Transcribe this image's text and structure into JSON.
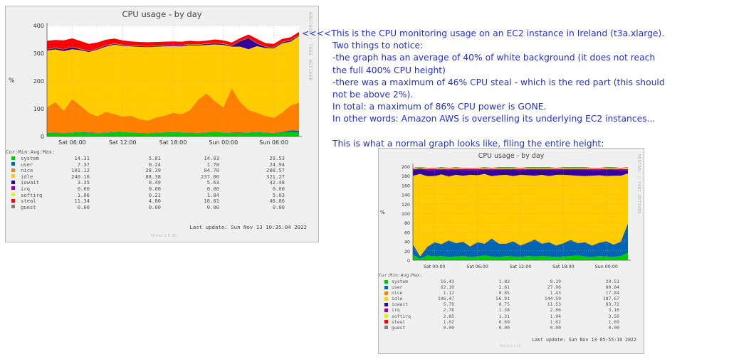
{
  "chart_data": [
    {
      "type": "area",
      "stacked": true,
      "title": "CPU usage - by day",
      "side_label": "RRDTOOL / TOBI OETIKER",
      "ylabel": "%",
      "ylim": [
        0,
        400
      ],
      "yticks": [
        "0",
        "100",
        "200",
        "300",
        "400"
      ],
      "xticks": [
        "Sat 06:00",
        "Sat 12:00",
        "Sat 18:00",
        "Sun 00:00",
        "Sun 06:00"
      ],
      "grid": true,
      "columns": [
        "Cur:",
        "Min:",
        "Avg:",
        "Max:"
      ],
      "series": [
        {
          "name": "system",
          "color": "#00cc00",
          "cur": "14.31",
          "min": "5.81",
          "avg": "14.03",
          "max": "29.53",
          "values": [
            14,
            13,
            12,
            14,
            15,
            13,
            12,
            13,
            15,
            16,
            14,
            12,
            11,
            13,
            14,
            15,
            14,
            13,
            12,
            14,
            16,
            14,
            13,
            12,
            14,
            15,
            13,
            12,
            14,
            16,
            14
          ]
        },
        {
          "name": "user",
          "color": "#0066b3",
          "cur": "7.37",
          "min": "0.24",
          "avg": "1.78",
          "max": "24.94",
          "values": [
            1,
            1,
            1,
            1,
            1,
            2,
            1,
            1,
            1,
            1,
            1,
            1,
            1,
            1,
            1,
            1,
            1,
            1,
            1,
            1,
            1,
            1,
            1,
            2,
            1,
            1,
            1,
            1,
            2,
            6,
            7
          ]
        },
        {
          "name": "nice",
          "color": "#ff8000",
          "cur": "101.12",
          "min": "28.39",
          "avg": "84.70",
          "max": "208.57",
          "values": [
            90,
            110,
            80,
            120,
            95,
            70,
            60,
            75,
            65,
            55,
            60,
            50,
            45,
            55,
            60,
            70,
            65,
            80,
            120,
            140,
            110,
            90,
            160,
            110,
            80,
            70,
            60,
            55,
            70,
            90,
            101
          ]
        },
        {
          "name": "idle",
          "color": "#ffcc00",
          "cur": "240.16",
          "min": "88.38",
          "avg": "237.00",
          "max": "321.27",
          "values": [
            205,
            190,
            215,
            180,
            200,
            220,
            240,
            235,
            250,
            255,
            250,
            260,
            265,
            255,
            250,
            240,
            245,
            235,
            195,
            175,
            205,
            225,
            150,
            200,
            220,
            240,
            245,
            250,
            250,
            230,
            240
          ]
        },
        {
          "name": "iowait",
          "color": "#330099",
          "cur": "3.35",
          "min": "0.49",
          "avg": "5.63",
          "max": "42.48",
          "values": [
            4,
            5,
            6,
            8,
            4,
            3,
            3,
            4,
            3,
            3,
            2,
            3,
            3,
            3,
            3,
            4,
            4,
            3,
            3,
            4,
            5,
            4,
            3,
            20,
            40,
            10,
            4,
            3,
            4,
            5,
            3
          ]
        },
        {
          "name": "irq",
          "color": "#990099",
          "cur": "0.00",
          "min": "0.00",
          "avg": "0.00",
          "max": "0.00",
          "values": [
            0,
            0,
            0,
            0,
            0,
            0,
            0,
            0,
            0,
            0,
            0,
            0,
            0,
            0,
            0,
            0,
            0,
            0,
            0,
            0,
            0,
            0,
            0,
            0,
            0,
            0,
            0,
            0,
            0,
            0,
            0
          ]
        },
        {
          "name": "softirq",
          "color": "#ccff00",
          "cur": "1.06",
          "min": "0.21",
          "avg": "1.04",
          "max": "5.03",
          "values": [
            1,
            1,
            1,
            1,
            1,
            1,
            1,
            1,
            1,
            1,
            1,
            1,
            1,
            1,
            1,
            1,
            1,
            1,
            1,
            1,
            1,
            1,
            1,
            1,
            1,
            1,
            1,
            1,
            1,
            1,
            1
          ]
        },
        {
          "name": "steal",
          "color": "#ff0000",
          "cur": "11.34",
          "min": "4.80",
          "avg": "18.01",
          "max": "46.86",
          "values": [
            30,
            28,
            32,
            30,
            28,
            25,
            22,
            20,
            18,
            16,
            15,
            14,
            14,
            13,
            13,
            12,
            12,
            12,
            11,
            11,
            12,
            12,
            11,
            10,
            12,
            15,
            13,
            12,
            11,
            10,
            11
          ]
        },
        {
          "name": "guest",
          "color": "#808080",
          "cur": "0.00",
          "min": "0.00",
          "avg": "0.00",
          "max": "0.00",
          "values": [
            0,
            0,
            0,
            0,
            0,
            0,
            0,
            0,
            0,
            0,
            0,
            0,
            0,
            0,
            0,
            0,
            0,
            0,
            0,
            0,
            0,
            0,
            0,
            0,
            0,
            0,
            0,
            0,
            0,
            0,
            0
          ]
        }
      ],
      "last_update": "Last update: Sun Nov 13 10:35:04 2022",
      "version": "Munin 2.0.30"
    },
    {
      "type": "area",
      "stacked": true,
      "title": "CPU usage - by day",
      "side_label": "RRDTOOL / TOBI OETIKER",
      "ylabel": "%",
      "ylim": [
        0,
        200
      ],
      "yticks": [
        "0",
        "20",
        "40",
        "60",
        "80",
        "100",
        "120",
        "140",
        "160",
        "180",
        "200"
      ],
      "xticks": [
        "Sat 00:00",
        "Sat 06:00",
        "Sat 12:00",
        "Sat 18:00",
        "Sun 00:00"
      ],
      "grid": true,
      "columns": [
        "Cur:",
        "Min:",
        "Avg:",
        "Max:"
      ],
      "series": [
        {
          "name": "system",
          "color": "#00cc00",
          "cur": "16.43",
          "min": "1.83",
          "avg": "8.19",
          "max": "20.51",
          "values": [
            12,
            3,
            10,
            8,
            9,
            7,
            8,
            9,
            7,
            8,
            10,
            8,
            7,
            9,
            8,
            7,
            9,
            8,
            9,
            8,
            7,
            8,
            9,
            10,
            8,
            7,
            9,
            8,
            7,
            9,
            16
          ]
        },
        {
          "name": "user",
          "color": "#0066b3",
          "cur": "62.10",
          "min": "2.81",
          "avg": "27.96",
          "max": "80.84",
          "values": [
            22,
            5,
            18,
            30,
            25,
            35,
            28,
            30,
            22,
            30,
            25,
            38,
            28,
            26,
            32,
            24,
            28,
            36,
            26,
            30,
            24,
            28,
            34,
            26,
            30,
            24,
            28,
            32,
            26,
            30,
            62
          ]
        },
        {
          "name": "nice",
          "color": "#ff8000",
          "cur": "1.12",
          "min": "0.85",
          "avg": "1.43",
          "max": "17.84",
          "values": [
            1,
            1,
            1,
            1,
            1,
            1,
            1,
            1,
            1,
            1,
            1,
            1,
            1,
            1,
            1,
            1,
            1,
            1,
            1,
            1,
            1,
            1,
            1,
            1,
            1,
            1,
            1,
            1,
            1,
            1,
            1
          ]
        },
        {
          "name": "idle",
          "color": "#ffcc00",
          "cur": "106.47",
          "min": "56.91",
          "avg": "144.59",
          "max": "187.67",
          "values": [
            145,
            175,
            150,
            140,
            148,
            135,
            145,
            140,
            152,
            142,
            148,
            132,
            145,
            146,
            138,
            150,
            143,
            135,
            146,
            140,
            150,
            145,
            137,
            143,
            140,
            148,
            143,
            138,
            146,
            140,
            106
          ]
        },
        {
          "name": "iowait",
          "color": "#330099",
          "cur": "5.79",
          "min": "0.75",
          "avg": "11.53",
          "max": "83.72",
          "values": [
            12,
            10,
            13,
            13,
            10,
            14,
            11,
            12,
            10,
            11,
            9,
            13,
            12,
            11,
            14,
            10,
            12,
            13,
            11,
            14,
            10,
            11,
            12,
            13,
            14,
            12,
            11,
            14,
            13,
            12,
            6
          ]
        },
        {
          "name": "irq",
          "color": "#990099",
          "cur": "2.78",
          "min": "1.38",
          "avg": "2.06",
          "max": "3.16",
          "values": [
            2,
            2,
            2,
            2,
            2,
            2,
            2,
            2,
            2,
            2,
            2,
            2,
            2,
            2,
            2,
            2,
            2,
            2,
            2,
            2,
            2,
            2,
            2,
            2,
            2,
            2,
            2,
            2,
            2,
            2,
            3
          ]
        },
        {
          "name": "softirq",
          "color": "#ccff00",
          "cur": "2.85",
          "min": "1.31",
          "avg": "1.94",
          "max": "3.50",
          "values": [
            2,
            2,
            2,
            2,
            2,
            2,
            2,
            2,
            2,
            2,
            2,
            2,
            2,
            2,
            2,
            2,
            2,
            2,
            2,
            2,
            2,
            2,
            2,
            2,
            2,
            2,
            2,
            2,
            2,
            2,
            3
          ]
        },
        {
          "name": "steal",
          "color": "#ff0000",
          "cur": "1.02",
          "min": "0.69",
          "avg": "1.02",
          "max": "1.69",
          "values": [
            1,
            1,
            1,
            1,
            1,
            1,
            1,
            1,
            1,
            1,
            1,
            1,
            1,
            1,
            1,
            1,
            1,
            1,
            1,
            1,
            1,
            1,
            1,
            1,
            1,
            1,
            1,
            1,
            1,
            1,
            1
          ]
        },
        {
          "name": "guest",
          "color": "#808080",
          "cur": "0.00",
          "min": "0.00",
          "avg": "0.00",
          "max": "0.00",
          "values": [
            0,
            0,
            0,
            0,
            0,
            0,
            0,
            0,
            0,
            0,
            0,
            0,
            0,
            0,
            0,
            0,
            0,
            0,
            0,
            0,
            0,
            0,
            0,
            0,
            0,
            0,
            0,
            0,
            0,
            0,
            0
          ]
        }
      ],
      "last_update": "Last update: Sun Nov 13 05:55:10 2022",
      "version": "Munin 2.0.30"
    }
  ],
  "annotation": {
    "lines": [
      "<<<<This is the CPU monitoring usage on an EC2 instance in Ireland (t3a.xlarge).",
      "Two things to notice:",
      "-the graph has an average of 40% of white background (it does not reach",
      "the full 400% CPU height)",
      "-there was a maximum of 46% CPU steal - which is the red part (this should",
      "not be above 2%).",
      "In total: a maximum of 86% CPU power is GONE.",
      "In other words: Amazon AWS is overselling its underlying EC2 instances...",
      "This is what a normal graph looks like, filing the entire height:"
    ]
  }
}
